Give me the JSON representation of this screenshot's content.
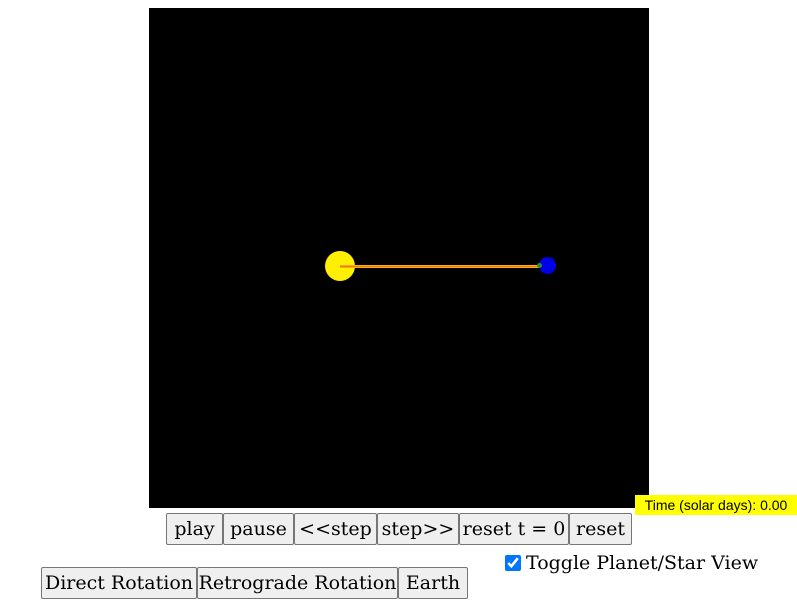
{
  "simulation": {
    "time_readout": "Time (solar days): 0.00",
    "colors": {
      "background": "#000000",
      "sun": "#ffef00",
      "radius_line": "#ffa31a",
      "planet": "#0000e6",
      "planet_marker": "#2f8f2f",
      "time_readout_bg": "#ffff00"
    }
  },
  "controls": {
    "play_label": "play",
    "pause_label": "pause",
    "step_back_label": "<<step",
    "step_forward_label": "step>>",
    "reset_time_label": "reset t = 0",
    "reset_label": "reset"
  },
  "view_toggle": {
    "checked": true,
    "label": "Toggle Planet/Star View"
  },
  "presets": {
    "direct_label": "Direct Rotation",
    "retrograde_label": "Retrograde Rotation",
    "earth_label": "Earth"
  }
}
